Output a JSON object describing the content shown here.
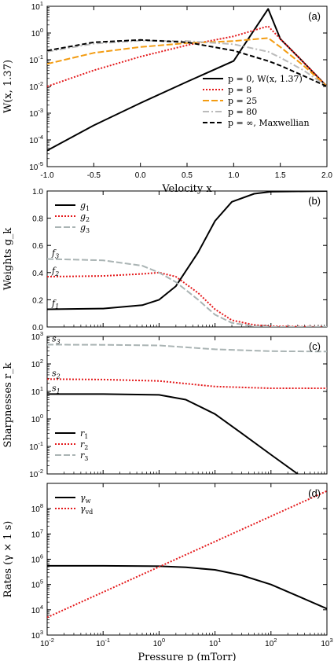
{
  "chart_data": [
    {
      "id": "a",
      "type": "line",
      "panel_label": "(a)",
      "xlabel": "Velocity x",
      "ylabel": "W(x, 1.37)",
      "xlim": [
        -1.0,
        2.0
      ],
      "ylim_log10": [
        -5,
        1
      ],
      "y_scale": "log",
      "xticks": [
        "-1.0",
        "-0.5",
        "0.0",
        "0.5",
        "1.0",
        "1.5",
        "2.0"
      ],
      "yticks": [
        "10^-5",
        "10^-4",
        "10^-3",
        "10^-2",
        "10^-1",
        "10^0",
        "10^1"
      ],
      "legend_position": "lower-right",
      "series": [
        {
          "name": "p = 0, W(x, 1.37)",
          "color": "#000000",
          "dash": "",
          "width": 2,
          "x": [
            -1.0,
            -0.5,
            0.0,
            0.5,
            1.0,
            1.37,
            1.5,
            1.75,
            2.0
          ],
          "y": [
            4e-05,
            0.00035,
            0.0024,
            0.015,
            0.09,
            8.0,
            0.6,
            0.08,
            0.01
          ]
        },
        {
          "name": "p = 8",
          "color": "#e41a1c",
          "dash": "2,2",
          "width": 2,
          "x": [
            -1.0,
            -0.5,
            0.0,
            0.5,
            1.0,
            1.37,
            1.5,
            1.75,
            2.0
          ],
          "y": [
            0.01,
            0.04,
            0.13,
            0.35,
            0.75,
            1.8,
            0.6,
            0.08,
            0.01
          ]
        },
        {
          "name": "p = 25",
          "color": "#f39c12",
          "dash": "8,3",
          "width": 2,
          "x": [
            -1.0,
            -0.5,
            0.0,
            0.5,
            1.0,
            1.37,
            1.5,
            1.75,
            2.0
          ],
          "y": [
            0.07,
            0.18,
            0.3,
            0.42,
            0.5,
            0.65,
            0.3,
            0.06,
            0.01
          ]
        },
        {
          "name": "p = 80",
          "color": "#bbbbbb",
          "dash": "8,3,2,3",
          "width": 2,
          "x": [
            -1.0,
            -0.5,
            0.0,
            0.5,
            1.0,
            1.37,
            1.5,
            1.75,
            2.0
          ],
          "y": [
            0.2,
            0.4,
            0.52,
            0.5,
            0.38,
            0.2,
            0.12,
            0.04,
            0.01
          ]
        },
        {
          "name": "p = ∞, Maxwellian",
          "color": "#000000",
          "dash": "6,3",
          "width": 2,
          "x": [
            -1.0,
            -0.5,
            0.0,
            0.5,
            1.0,
            1.37,
            1.5,
            1.75,
            2.0
          ],
          "y": [
            0.22,
            0.45,
            0.55,
            0.45,
            0.22,
            0.09,
            0.06,
            0.025,
            0.01
          ]
        }
      ]
    },
    {
      "id": "b",
      "type": "line",
      "panel_label": "(b)",
      "xlabel": "",
      "ylabel": "Weights g_k",
      "x_scale": "log",
      "xlim_log10": [
        -2,
        3
      ],
      "ylim": [
        0.0,
        1.0
      ],
      "yticks": [
        "0.0",
        "0.2",
        "0.4",
        "0.6",
        "0.8",
        "1.0"
      ],
      "legend_position": "top-left",
      "annotations": [
        {
          "text": "f3",
          "y": 0.5
        },
        {
          "text": "f2",
          "y": 0.37
        },
        {
          "text": "f1",
          "y": 0.13
        }
      ],
      "series": [
        {
          "name": "g1",
          "color": "#000000",
          "dash": "",
          "width": 2,
          "x": [
            0.01,
            0.1,
            0.5,
            1,
            2,
            5,
            10,
            20,
            50,
            100,
            1000
          ],
          "y": [
            0.13,
            0.135,
            0.16,
            0.2,
            0.3,
            0.55,
            0.78,
            0.92,
            0.98,
            0.995,
            1.0
          ]
        },
        {
          "name": "g2",
          "color": "#e41a1c",
          "dash": "2,2",
          "width": 2,
          "x": [
            0.01,
            0.1,
            0.5,
            1,
            2,
            5,
            10,
            20,
            50,
            100,
            1000
          ],
          "y": [
            0.37,
            0.375,
            0.39,
            0.4,
            0.37,
            0.25,
            0.13,
            0.05,
            0.015,
            0.005,
            0.0
          ]
        },
        {
          "name": "g3",
          "color": "#aab4b4",
          "dash": "8,3",
          "width": 2,
          "x": [
            0.01,
            0.1,
            0.5,
            1,
            2,
            5,
            10,
            20,
            50,
            100,
            1000
          ],
          "y": [
            0.5,
            0.49,
            0.45,
            0.4,
            0.33,
            0.2,
            0.09,
            0.03,
            0.005,
            0.0,
            0.0
          ]
        }
      ]
    },
    {
      "id": "c",
      "type": "line",
      "panel_label": "(c)",
      "xlabel": "",
      "ylabel": "Sharpnesses r_k",
      "x_scale": "log",
      "y_scale": "log",
      "xlim_log10": [
        -2,
        3
      ],
      "ylim_log10": [
        -2,
        3
      ],
      "yticks": [
        "10^-2",
        "10^-1",
        "10^0",
        "10^1",
        "10^2",
        "10^3"
      ],
      "legend_position": "lower-left",
      "annotations": [
        {
          "text": "s3",
          "y": 500
        },
        {
          "text": "s2",
          "y": 28
        },
        {
          "text": "s1",
          "y": 8
        }
      ],
      "series": [
        {
          "name": "r1",
          "color": "#000000",
          "dash": "",
          "width": 2,
          "x": [
            0.01,
            0.1,
            1,
            3,
            10,
            30,
            100,
            300
          ],
          "y": [
            8,
            8,
            7.5,
            5,
            1.5,
            0.3,
            0.05,
            0.01
          ]
        },
        {
          "name": "r2",
          "color": "#e41a1c",
          "dash": "2,2",
          "width": 2,
          "x": [
            0.01,
            0.1,
            1,
            10,
            100,
            1000
          ],
          "y": [
            28,
            27,
            24,
            15,
            13,
            13
          ]
        },
        {
          "name": "r3",
          "color": "#aab4b4",
          "dash": "8,3",
          "width": 2,
          "x": [
            0.01,
            0.1,
            1,
            10,
            100,
            1000
          ],
          "y": [
            500,
            495,
            470,
            340,
            290,
            280
          ]
        }
      ]
    },
    {
      "id": "d",
      "type": "line",
      "panel_label": "(d)",
      "xlabel": "Pressure p (mTorr)",
      "ylabel": "Rates (γ × 1 s)",
      "x_scale": "log",
      "y_scale": "log",
      "xlim_log10": [
        -2,
        3
      ],
      "ylim_log10": [
        3,
        9
      ],
      "xticks": [
        "10^-2",
        "10^-1",
        "10^0",
        "10^1",
        "10^2",
        "10^3"
      ],
      "yticks": [
        "10^3",
        "10^4",
        "10^5",
        "10^6",
        "10^7",
        "10^8"
      ],
      "legend_position": "top-left",
      "series": [
        {
          "name": "γw",
          "color": "#000000",
          "dash": "",
          "width": 2,
          "x": [
            0.01,
            0.1,
            1,
            3,
            10,
            30,
            100,
            300,
            1000
          ],
          "y": [
            550000,
            550000,
            530000,
            480000,
            380000,
            230000,
            100000,
            35000,
            11000
          ]
        },
        {
          "name": "γvd",
          "color": "#e41a1c",
          "dash": "2,2",
          "width": 2,
          "x": [
            0.01,
            1000
          ],
          "y": [
            5000,
            500000000
          ]
        }
      ]
    }
  ]
}
